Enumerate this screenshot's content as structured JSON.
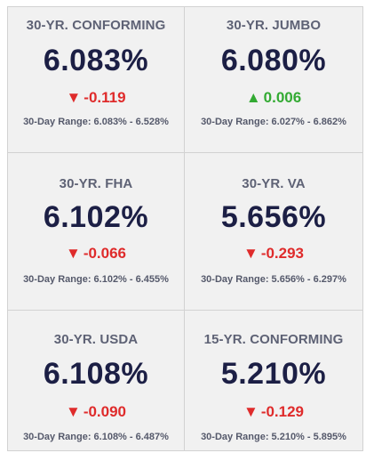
{
  "rates": [
    {
      "label": "30-YR. CONFORMING",
      "rate": "6.083%",
      "change": "-0.119",
      "direction": "down",
      "arrow": "▼",
      "range": "30-Day Range: 6.083% - 6.528%"
    },
    {
      "label": "30-YR. JUMBO",
      "rate": "6.080%",
      "change": "0.006",
      "direction": "up",
      "arrow": "▲",
      "range": "30-Day Range: 6.027% - 6.862%"
    },
    {
      "label": "30-YR. FHA",
      "rate": "6.102%",
      "change": "-0.066",
      "direction": "down",
      "arrow": "▼",
      "range": "30-Day Range: 6.102% - 6.455%"
    },
    {
      "label": "30-YR. VA",
      "rate": "5.656%",
      "change": "-0.293",
      "direction": "down",
      "arrow": "▼",
      "range": "30-Day Range: 5.656% - 6.297%"
    },
    {
      "label": "30-YR. USDA",
      "rate": "6.108%",
      "change": "-0.090",
      "direction": "down",
      "arrow": "▼",
      "range": "30-Day Range: 6.108% - 6.487%"
    },
    {
      "label": "15-YR. CONFORMING",
      "rate": "5.210%",
      "change": "-0.129",
      "direction": "down",
      "arrow": "▼",
      "range": "30-Day Range: 5.210% - 5.895%"
    }
  ],
  "colors": {
    "rate_text": "#1c1f45",
    "label_text": "#5e6275",
    "down": "#df2b2b",
    "up": "#33aa33",
    "tile_bg": "#f1f1f1"
  }
}
